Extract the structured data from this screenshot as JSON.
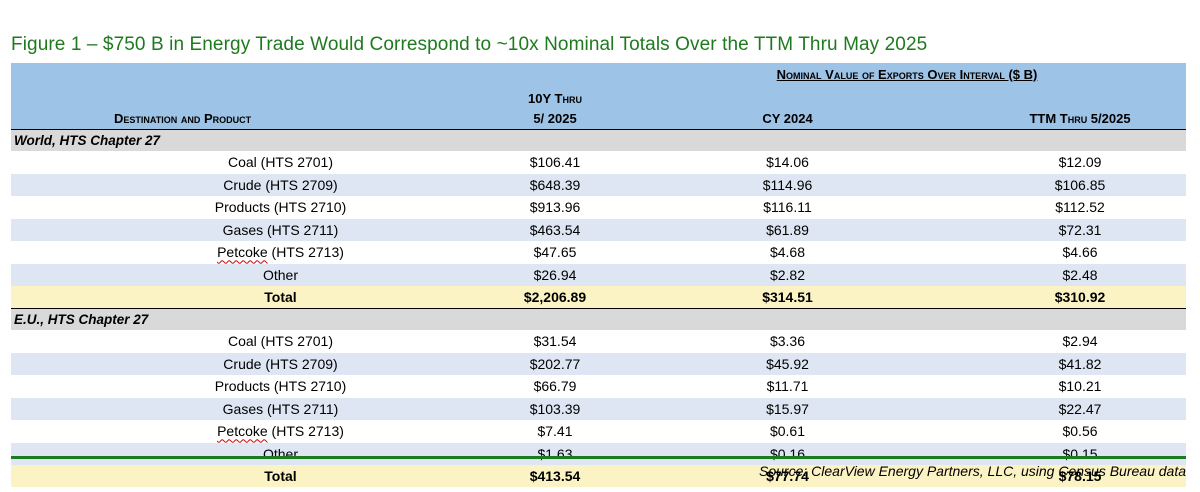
{
  "title": "Figure 1 – $750 B in Energy Trade Would Correspond to ~10x Nominal Totals Over the TTM Thru May 2025",
  "header": {
    "group_label": "Nominal Value of Exports Over Interval ($ B)",
    "col0": "Destination and Product",
    "col1_line1": "10Y Thru",
    "col1_line2": "5/ 2025",
    "col2": "CY 2024",
    "col3": "TTM Thru 5/2025"
  },
  "sections": [
    {
      "label": "World, HTS Chapter 27",
      "rows": [
        {
          "product": "Coal (HTS 2701)",
          "y10": "$106.41",
          "cy2024": "$14.06",
          "ttm": "$12.09"
        },
        {
          "product": "Crude (HTS 2709)",
          "y10": "$648.39",
          "cy2024": "$114.96",
          "ttm": "$106.85"
        },
        {
          "product": "Products (HTS 2710)",
          "y10": "$913.96",
          "cy2024": "$116.11",
          "ttm": "$112.52"
        },
        {
          "product": "Gases (HTS 2711)",
          "y10": "$463.54",
          "cy2024": "$61.89",
          "ttm": "$72.31"
        },
        {
          "product_a": "Petcoke",
          "product_b": " (HTS 2713)",
          "y10": "$47.65",
          "cy2024": "$4.68",
          "ttm": "$4.66"
        },
        {
          "product": "Other",
          "y10": "$26.94",
          "cy2024": "$2.82",
          "ttm": "$2.48"
        }
      ],
      "total": {
        "label": "Total",
        "y10": "$2,206.89",
        "cy2024": "$314.51",
        "ttm": "$310.92"
      }
    },
    {
      "label": "E.U., HTS Chapter 27",
      "rows": [
        {
          "product": "Coal (HTS 2701)",
          "y10": "$31.54",
          "cy2024": "$3.36",
          "ttm": "$2.94"
        },
        {
          "product": "Crude (HTS 2709)",
          "y10": "$202.77",
          "cy2024": "$45.92",
          "ttm": "$41.82"
        },
        {
          "product": "Products (HTS 2710)",
          "y10": "$66.79",
          "cy2024": "$11.71",
          "ttm": "$10.21"
        },
        {
          "product": "Gases (HTS 2711)",
          "y10": "$103.39",
          "cy2024": "$15.97",
          "ttm": "$22.47"
        },
        {
          "product_a": "Petcoke",
          "product_b": " (HTS 2713)",
          "y10": "$7.41",
          "cy2024": "$0.61",
          "ttm": "$0.56"
        },
        {
          "product": "Other",
          "y10": "$1.63",
          "cy2024": "$0.16",
          "ttm": "$0.15"
        }
      ],
      "total": {
        "label": "Total",
        "y10": "$413.54",
        "cy2024": "$77.74",
        "ttm": "$78.15"
      }
    }
  ],
  "source": "Source: ClearView Energy Partners, LLC, using Census Bureau data",
  "colors": {
    "title_green": "#1e7a1e",
    "header_blue": "#9dc3e6",
    "band_blue": "#dde6f2",
    "total_yellow": "#fbf3c3",
    "section_gray": "#d9d9d9"
  }
}
